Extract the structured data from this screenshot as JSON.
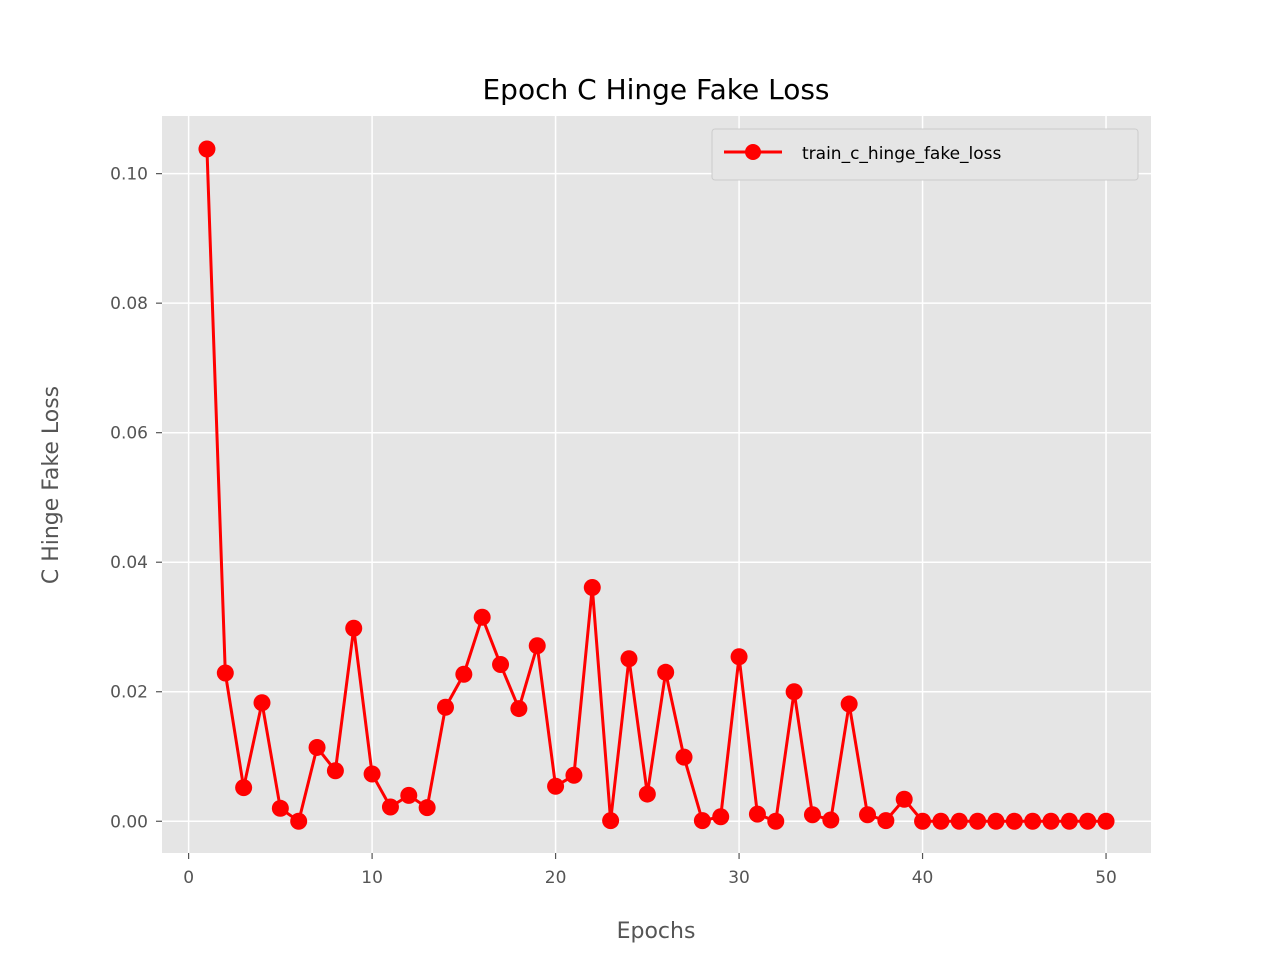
{
  "chart_data": {
    "type": "line",
    "title": "Epoch C Hinge Fake Loss",
    "xlabel": "Epochs",
    "ylabel": "C Hinge Fake Loss",
    "xlim": [
      -1.45,
      52.45
    ],
    "ylim": [
      -0.0049,
      0.1089
    ],
    "xticks": [
      0,
      10,
      20,
      30,
      40,
      50
    ],
    "xtick_labels": [
      "0",
      "10",
      "20",
      "30",
      "40",
      "50"
    ],
    "yticks": [
      0.0,
      0.02,
      0.04,
      0.06,
      0.08,
      0.1
    ],
    "ytick_labels": [
      "0.00",
      "0.02",
      "0.04",
      "0.06",
      "0.08",
      "0.10"
    ],
    "grid": true,
    "legend_position": "upper right",
    "colors": {
      "series": "#ff0000",
      "plot_bg": "#e5e5e5",
      "grid": "#ffffff"
    },
    "series": [
      {
        "name": "train_c_hinge_fake_loss",
        "marker": "circle",
        "x": [
          1,
          2,
          3,
          4,
          5,
          6,
          7,
          8,
          9,
          10,
          11,
          12,
          13,
          14,
          15,
          16,
          17,
          18,
          19,
          20,
          21,
          22,
          23,
          24,
          25,
          26,
          27,
          28,
          29,
          30,
          31,
          32,
          33,
          34,
          35,
          36,
          37,
          38,
          39,
          40,
          41,
          42,
          43,
          44,
          45,
          46,
          47,
          48,
          49,
          50
        ],
        "y": [
          0.1038,
          0.0229,
          0.0052,
          0.0183,
          0.002,
          0.0,
          0.0114,
          0.0078,
          0.0298,
          0.0073,
          0.0022,
          0.004,
          0.0021,
          0.0176,
          0.0227,
          0.0315,
          0.0242,
          0.0174,
          0.0271,
          0.0054,
          0.0071,
          0.0361,
          0.0001,
          0.0251,
          0.0042,
          0.023,
          0.0099,
          0.0001,
          0.0007,
          0.0254,
          0.0011,
          0.0,
          0.02,
          0.001,
          0.0002,
          0.0181,
          0.001,
          0.0001,
          0.0034,
          0.0,
          0.0,
          0.0,
          0.0,
          0.0,
          0.0,
          0.0,
          0.0,
          0.0,
          0.0,
          0.0
        ]
      }
    ]
  }
}
